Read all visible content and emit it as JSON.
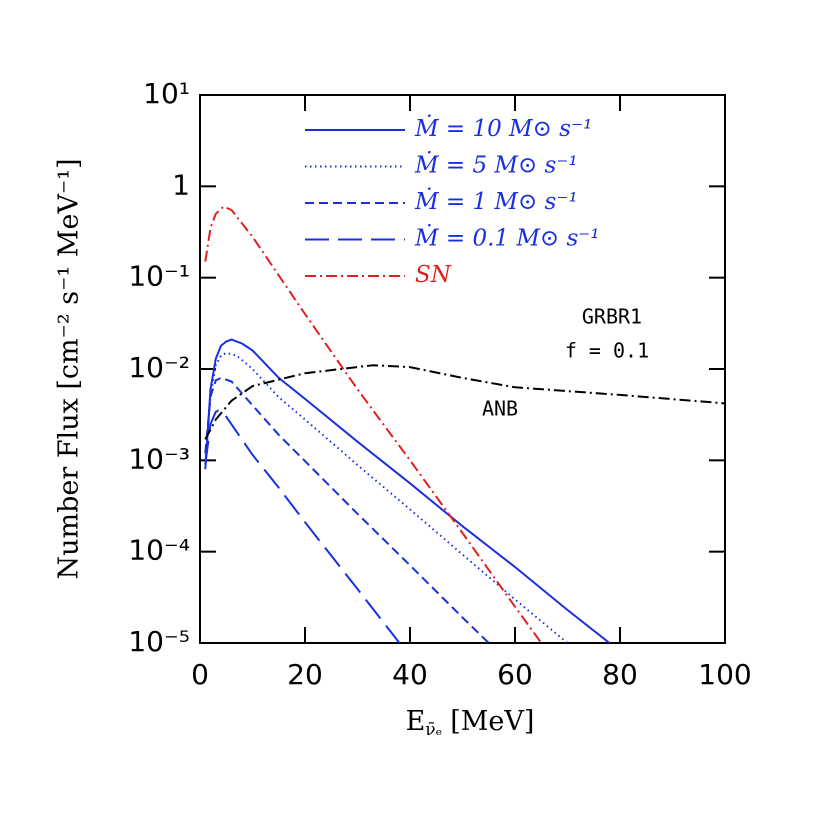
{
  "chart_data": {
    "type": "line",
    "ylog": true,
    "xlim": [
      0,
      100
    ],
    "xticks": [
      0,
      20,
      40,
      60,
      80,
      100
    ],
    "ylim": [
      1e-05,
      10
    ],
    "yticks": [
      {
        "value": 10,
        "label": "10¹"
      },
      1,
      {
        "value": 0.1,
        "label": "10⁻¹"
      },
      {
        "value": 0.01,
        "label": "10⁻²"
      },
      {
        "value": 0.001,
        "label": "10⁻³"
      },
      {
        "value": 0.0001,
        "label": "10⁻⁴"
      },
      {
        "value": 1e-05,
        "label": "10⁻⁵"
      }
    ],
    "xlabel": {
      "main": "E",
      "sub": "ν̄ₑ",
      "unit": "[MeV]"
    },
    "ylabel": "Number Flux [cm⁻² s⁻¹ MeV⁻¹]",
    "legend": "top-left",
    "annotations": [
      "GRBR1",
      "f = 0.1",
      "ANB"
    ],
    "series": [
      {
        "name": "Ṁ = 10 M⊙ s⁻¹",
        "color": "#1a2fe0",
        "linestyle": "solid",
        "legend": true,
        "x": [
          1,
          2,
          3,
          4,
          5,
          6,
          8,
          10,
          15,
          20,
          30,
          40,
          50,
          60,
          70,
          78
        ],
        "values": [
          0.0008,
          0.006,
          0.013,
          0.018,
          0.02,
          0.021,
          0.019,
          0.016,
          0.008,
          0.0047,
          0.0016,
          0.00056,
          0.00019,
          6.8e-05,
          2.3e-05,
          1e-05
        ]
      },
      {
        "name": "Ṁ = 5 M⊙ s⁻¹",
        "color": "#1a2fe0",
        "linestyle": "dotted",
        "legend": true,
        "x": [
          1,
          2,
          3,
          4,
          5,
          7,
          10,
          15,
          20,
          30,
          40,
          50,
          60,
          70
        ],
        "values": [
          0.001,
          0.005,
          0.011,
          0.014,
          0.015,
          0.014,
          0.01,
          0.0049,
          0.0028,
          0.00089,
          0.00029,
          9.3e-05,
          3e-05,
          1e-05
        ]
      },
      {
        "name": "Ṁ = 1 M⊙ s⁻¹",
        "color": "#1a2fe0",
        "linestyle": "dashed",
        "legend": true,
        "x": [
          1,
          2,
          3,
          4,
          6,
          10,
          15,
          20,
          30,
          40,
          50,
          55
        ],
        "values": [
          0.0012,
          0.005,
          0.0075,
          0.008,
          0.0073,
          0.004,
          0.0019,
          0.00098,
          0.00026,
          7.1e-05,
          1.9e-05,
          1e-05
        ]
      },
      {
        "name": "Ṁ = 0.1 M⊙ s⁻¹",
        "color": "#1a2fe0",
        "linestyle": "longdash",
        "legend": true,
        "x": [
          1,
          2,
          3,
          3.5,
          5,
          10,
          15,
          20,
          30,
          38
        ],
        "values": [
          0.0009,
          0.0025,
          0.0034,
          0.0035,
          0.003,
          0.00115,
          0.0005,
          0.00021,
          3.9e-05,
          1e-05
        ]
      },
      {
        "name": "SN",
        "color": "#e02020",
        "linestyle": "dashdot",
        "legend": true,
        "x": [
          1,
          2,
          3,
          4.5,
          6,
          10,
          20,
          30,
          40,
          50,
          60,
          65
        ],
        "values": [
          0.15,
          0.35,
          0.5,
          0.6,
          0.55,
          0.28,
          0.04,
          0.006,
          0.001,
          0.00016,
          2.5e-05,
          1e-05
        ]
      },
      {
        "color": "#000000",
        "linestyle": "dashdot",
        "legend": false,
        "x": [
          1,
          3,
          6,
          10,
          20,
          33,
          40,
          50,
          60,
          80,
          100
        ],
        "values": [
          0.0017,
          0.0028,
          0.0045,
          0.0065,
          0.009,
          0.011,
          0.0105,
          0.008,
          0.0063,
          0.0052,
          0.0042
        ]
      }
    ]
  }
}
